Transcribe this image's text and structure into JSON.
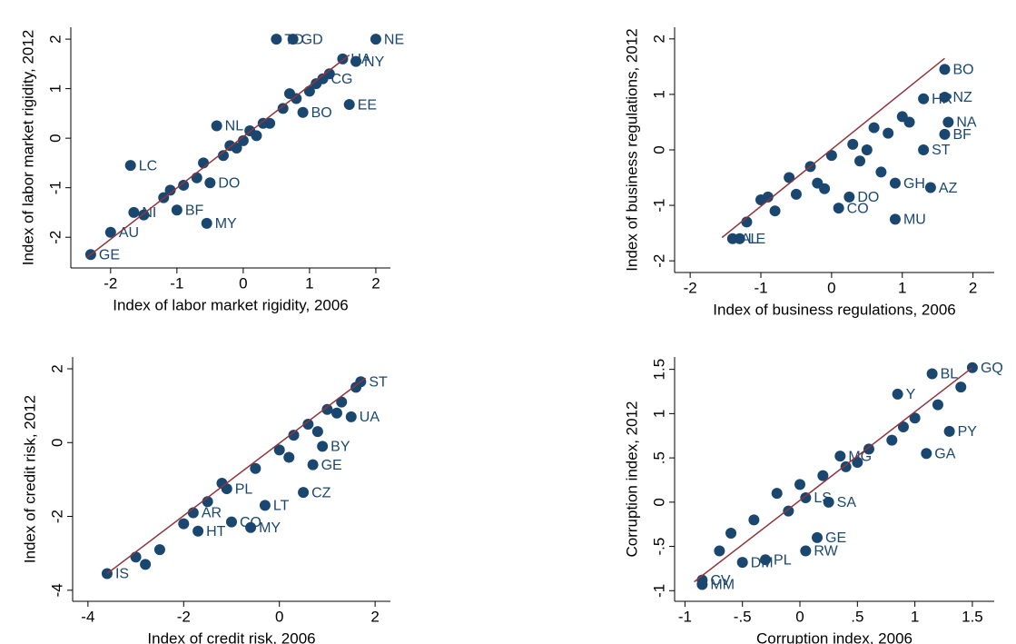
{
  "chart_data": [
    {
      "type": "scatter",
      "xlabel": "Index of labor market rigidity, 2006",
      "ylabel": "Index of labor market rigidity, 2012",
      "xlim": [
        -2.6,
        2.22
      ],
      "ylim": [
        -2.62,
        2.24
      ],
      "xticks": [
        -2,
        -1,
        0,
        1,
        2
      ],
      "yticks": [
        -2,
        -1,
        0,
        1,
        2
      ],
      "color": "#1a476f",
      "x": [
        -2.3,
        -2.0,
        -0.55,
        -1.7,
        -1.65,
        -1.0,
        1.6,
        0.9,
        1.2,
        0.5,
        0.75,
        2.0,
        1.5,
        1.7,
        -0.4,
        -0.5,
        -1.5,
        -1.2,
        -0.9,
        -0.7,
        -0.3,
        -0.1,
        0.1,
        0.3,
        0.6,
        0.8,
        1.0,
        1.3,
        -0.6,
        0.2,
        0.4,
        0.7,
        1.1,
        -1.1,
        -0.2,
        0.0
      ],
      "values": [
        -2.35,
        -1.9,
        -1.72,
        -0.55,
        -1.5,
        -1.45,
        0.68,
        0.52,
        1.2,
        2.0,
        2.0,
        2.0,
        1.6,
        1.55,
        0.25,
        -0.9,
        -1.55,
        -1.2,
        -0.95,
        -0.8,
        -0.35,
        -0.2,
        0.15,
        0.3,
        0.6,
        0.8,
        0.95,
        1.3,
        -0.5,
        0.05,
        0.3,
        0.9,
        1.1,
        -1.05,
        -0.15,
        -0.05
      ],
      "point_labels": [
        "GE",
        "AU",
        "MY",
        "LC",
        "NI",
        "BF",
        "EE",
        "BO",
        "CG",
        "TD",
        "GD",
        "NE",
        "UA",
        "NY",
        "NL",
        "DO",
        null,
        null,
        null,
        null,
        null,
        null,
        null,
        null,
        null,
        null,
        null,
        null,
        null,
        null,
        null,
        null,
        null,
        null,
        null,
        null
      ],
      "line": {
        "color": "#90353b",
        "x": [
          -2.35,
          1.6
        ],
        "y": [
          -2.4,
          1.68
        ]
      }
    },
    {
      "type": "scatter",
      "xlabel": "Index of business regulations, 2006",
      "ylabel": "Index of business regulations, 2012",
      "xlim": [
        -2.22,
        2.3
      ],
      "ylim": [
        -2.21,
        2.21
      ],
      "xticks": [
        -2,
        -1,
        0,
        1,
        2
      ],
      "yticks": [
        -2,
        -1,
        0,
        1,
        2
      ],
      "color": "#1a476f",
      "x": [
        1.6,
        1.4,
        0.9,
        1.6,
        1.65,
        1.3,
        0.9,
        0.1,
        0.25,
        -1.3,
        -1.4,
        1.6,
        1.3,
        -1.2,
        -0.9,
        -0.6,
        -0.3,
        0.0,
        0.3,
        0.6,
        0.8,
        1.0,
        -0.8,
        -0.5,
        -0.2,
        0.4,
        0.7,
        -1.0,
        -0.1,
        0.5,
        1.1
      ],
      "values": [
        1.45,
        -0.68,
        -1.25,
        0.28,
        0.5,
        0.0,
        -0.6,
        -1.05,
        -0.85,
        -1.6,
        -1.6,
        0.95,
        0.92,
        -1.3,
        -0.85,
        -0.5,
        -0.3,
        -0.1,
        0.1,
        0.4,
        0.3,
        0.6,
        -1.1,
        -0.8,
        -0.6,
        -0.2,
        -0.4,
        -0.9,
        -0.7,
        0.0,
        0.5
      ],
      "point_labels": [
        "BO",
        "AZ",
        "MU",
        "BF",
        "NA",
        "ST",
        "GH",
        "CO",
        "DO",
        "LE",
        "AL",
        "NZ",
        "HR",
        null,
        null,
        null,
        null,
        null,
        null,
        null,
        null,
        null,
        null,
        null,
        null,
        null,
        null,
        null,
        null,
        null,
        null
      ],
      "line": {
        "color": "#90353b",
        "x": [
          -1.55,
          1.6
        ],
        "y": [
          -1.58,
          1.65
        ]
      }
    },
    {
      "type": "scatter",
      "xlabel": "Index of credit risk, 2006",
      "ylabel": "Index of credit risk, 2012",
      "xlim": [
        -4.32,
        2.32
      ],
      "ylim": [
        -4.3,
        2.32
      ],
      "xticks": [
        -4,
        -2,
        0,
        2
      ],
      "yticks": [
        -4,
        -2,
        0,
        2
      ],
      "color": "#1a476f",
      "x": [
        1.5,
        0.5,
        -0.3,
        -1.0,
        -0.6,
        -1.7,
        0.7,
        0.9,
        -3.6,
        -1.1,
        -1.8,
        1.7,
        -3.0,
        -2.5,
        -2.0,
        -1.5,
        -0.5,
        0.0,
        0.3,
        0.6,
        1.0,
        1.3,
        1.6,
        -2.8,
        -1.2,
        0.2,
        0.8,
        1.2
      ],
      "values": [
        0.7,
        -1.35,
        -1.7,
        -2.15,
        -2.3,
        -2.4,
        -0.6,
        -0.1,
        -3.55,
        -1.25,
        -1.9,
        1.65,
        -3.1,
        -2.9,
        -2.2,
        -1.6,
        -0.7,
        -0.2,
        0.2,
        0.5,
        0.9,
        1.1,
        1.5,
        -3.3,
        -1.1,
        -0.4,
        0.3,
        0.8
      ],
      "point_labels": [
        "UA",
        "CZ",
        "LT",
        "CO",
        "MY",
        "HT",
        "GE",
        "BY",
        "IS",
        "PL",
        "AR",
        "ST",
        null,
        null,
        null,
        null,
        null,
        null,
        null,
        null,
        null,
        null,
        null,
        null,
        null,
        null,
        null,
        null
      ],
      "line": {
        "color": "#90353b",
        "x": [
          -3.6,
          1.8
        ],
        "y": [
          -3.55,
          1.75
        ]
      }
    },
    {
      "type": "scatter",
      "xlabel": "Corruption index, 2006",
      "ylabel": "Corruption index, 2012",
      "xlim": [
        -1.09,
        1.69
      ],
      "ylim": [
        -1.12,
        1.64
      ],
      "xticks": [
        {
          "value": -1,
          "label": "-1"
        },
        {
          "value": -0.5,
          "label": "-.5"
        },
        0,
        {
          "value": 0.5,
          "label": ".5"
        },
        1,
        1.5
      ],
      "yticks": [
        {
          "value": -1,
          "label": "-1"
        },
        {
          "value": -0.5,
          "label": "-.5"
        },
        0,
        {
          "value": 0.5,
          "label": ".5"
        },
        1,
        1.5
      ],
      "color": "#1a476f",
      "x": [
        1.5,
        1.15,
        1.1,
        1.3,
        0.35,
        0.25,
        0.15,
        0.05,
        -0.3,
        -0.5,
        -0.85,
        -0.85,
        0.05,
        0.85,
        -0.6,
        -0.4,
        -0.2,
        0.0,
        0.2,
        0.4,
        0.6,
        0.8,
        1.0,
        1.2,
        1.4,
        -0.7,
        -0.1,
        0.5,
        0.9
      ],
      "values": [
        1.52,
        1.45,
        0.55,
        0.8,
        0.52,
        0.0,
        -0.4,
        -0.55,
        -0.65,
        -0.68,
        -0.93,
        -0.88,
        0.05,
        1.22,
        -0.35,
        -0.2,
        0.1,
        0.2,
        0.3,
        0.4,
        0.6,
        0.7,
        0.95,
        1.1,
        1.3,
        -0.55,
        -0.1,
        0.45,
        0.85
      ],
      "point_labels": [
        "GQ",
        "BL",
        "GA",
        "PY",
        "MG",
        "SA",
        "GE",
        "RW",
        "PL",
        "DM",
        "MM",
        "CV",
        "LS",
        "Y",
        null,
        null,
        null,
        null,
        null,
        null,
        null,
        null,
        null,
        null,
        null,
        null,
        null,
        null,
        null
      ],
      "line": {
        "color": "#90353b",
        "x": [
          -0.92,
          1.5
        ],
        "y": [
          -0.9,
          1.52
        ]
      }
    }
  ]
}
